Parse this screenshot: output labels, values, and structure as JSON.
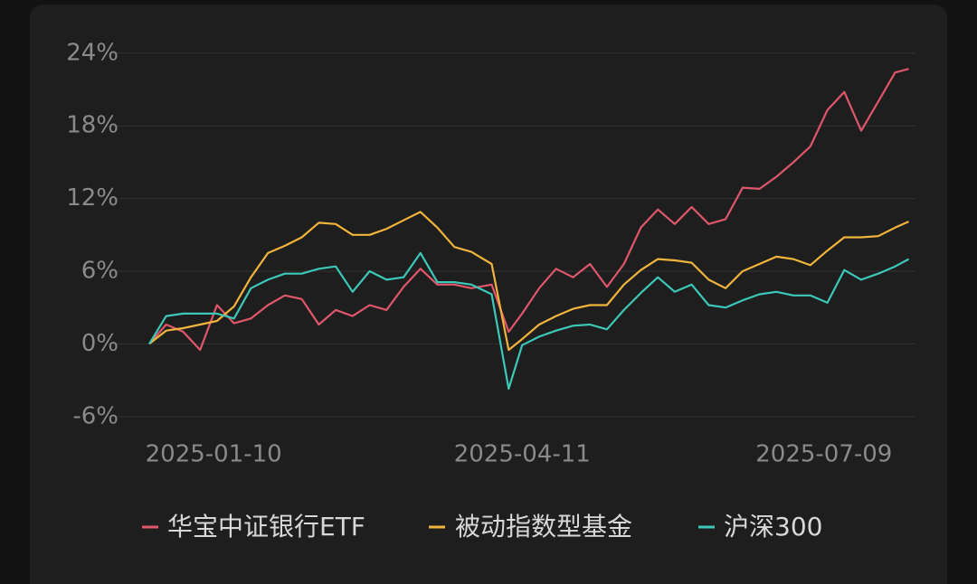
{
  "chart_data": {
    "type": "line",
    "x": [
      "2024-12-22",
      "2024-12-27",
      "2025-01-01",
      "2025-01-06",
      "2025-01-11",
      "2025-01-16",
      "2025-01-21",
      "2025-01-26",
      "2025-01-31",
      "2025-02-05",
      "2025-02-10",
      "2025-02-15",
      "2025-02-20",
      "2025-02-25",
      "2025-03-02",
      "2025-03-07",
      "2025-03-12",
      "2025-03-17",
      "2025-03-22",
      "2025-03-27",
      "2025-04-02",
      "2025-04-07",
      "2025-04-11",
      "2025-04-16",
      "2025-04-21",
      "2025-04-26",
      "2025-05-01",
      "2025-05-06",
      "2025-05-11",
      "2025-05-16",
      "2025-05-21",
      "2025-05-26",
      "2025-05-31",
      "2025-06-05",
      "2025-06-10",
      "2025-06-15",
      "2025-06-20",
      "2025-06-25",
      "2025-06-30",
      "2025-07-05",
      "2025-07-10",
      "2025-07-15",
      "2025-07-20",
      "2025-07-25",
      "2025-07-30",
      "2025-08-03"
    ],
    "series": [
      {
        "name": "华宝中证银行ETF",
        "color": "#e0566a",
        "values": [
          0,
          1.6,
          1.0,
          -0.5,
          3.2,
          1.7,
          2.1,
          3.2,
          4.0,
          3.7,
          1.6,
          2.8,
          2.3,
          3.2,
          2.8,
          4.7,
          6.2,
          4.9,
          4.9,
          4.6,
          4.9,
          1.0,
          2.5,
          4.6,
          6.2,
          5.5,
          6.6,
          4.7,
          6.6,
          9.6,
          11.1,
          9.9,
          11.3,
          9.9,
          10.3,
          12.9,
          12.8,
          13.8,
          15.0,
          16.3,
          19.3,
          20.8,
          17.6,
          20.0,
          22.4,
          22.7
        ]
      },
      {
        "name": "被动指数型基金",
        "color": "#f0b43c",
        "values": [
          0,
          1.1,
          1.3,
          1.6,
          1.9,
          3.1,
          5.5,
          7.5,
          8.1,
          8.8,
          10.0,
          9.9,
          9.0,
          9.0,
          9.5,
          10.2,
          10.9,
          9.6,
          8.0,
          7.6,
          6.6,
          -0.5,
          0.4,
          1.6,
          2.3,
          2.9,
          3.2,
          3.2,
          4.9,
          6.1,
          7.0,
          6.9,
          6.7,
          5.3,
          4.6,
          6.0,
          6.6,
          7.2,
          7.0,
          6.5,
          7.7,
          8.8,
          8.8,
          8.9,
          9.6,
          10.1
        ]
      },
      {
        "name": "沪深300",
        "color": "#3cc8b8",
        "values": [
          0,
          2.3,
          2.5,
          2.5,
          2.5,
          2.1,
          4.6,
          5.3,
          5.8,
          5.8,
          6.2,
          6.4,
          4.3,
          6.0,
          5.3,
          5.5,
          7.5,
          5.1,
          5.1,
          4.9,
          4.1,
          -3.7,
          -0.1,
          0.6,
          1.1,
          1.5,
          1.6,
          1.2,
          2.8,
          4.2,
          5.5,
          4.3,
          4.9,
          3.2,
          3.0,
          3.6,
          4.1,
          4.3,
          4.0,
          4.0,
          3.4,
          6.1,
          5.3,
          5.8,
          6.4,
          7.0
        ]
      }
    ],
    "xlim": [
      "2024-12-10",
      "2025-08-05"
    ],
    "xticks": [
      "2025-01-10",
      "2025-04-11",
      "2025-07-09"
    ],
    "ylim": [
      -8.4,
      26
    ],
    "yticks": [
      {
        "value": -6,
        "label": "-6%"
      },
      {
        "value": 0,
        "label": "0%"
      },
      {
        "value": 6,
        "label": "6%"
      },
      {
        "value": 12,
        "label": "12%"
      },
      {
        "value": 18,
        "label": "18%"
      },
      {
        "value": 24,
        "label": "24%"
      }
    ],
    "grid": true,
    "legend": "bottom"
  }
}
